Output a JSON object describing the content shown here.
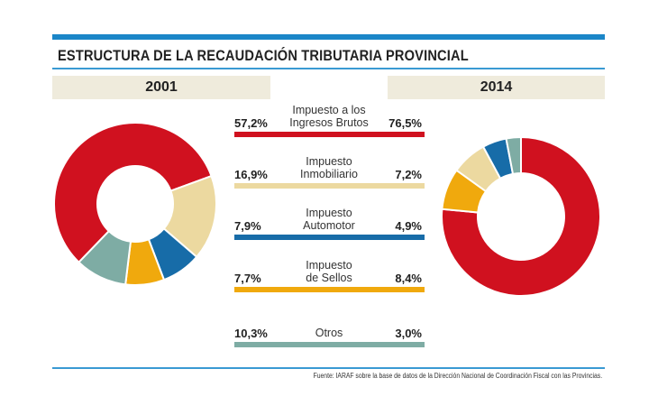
{
  "title": "ESTRUCTURA DE LA RECAUDACIÓN TRIBUTARIA PROVINCIAL",
  "source": "Fuente: IARAF sobre la base de datos de la Dirección Nacional de Coordinación Fiscal con las Provincias.",
  "colors": {
    "accent": "#1b86c8",
    "red": "#d0111f",
    "beige": "#ecd9a0",
    "blue": "#176ca8",
    "yellow": "#f0a90d",
    "teal": "#7eaca4"
  },
  "chart_data": [
    {
      "type": "pie",
      "title": "2001",
      "donut": true,
      "categories": [
        "Impuesto a los Ingresos Brutos",
        "Impuesto Inmobiliario",
        "Impuesto Automotor",
        "Impuesto de Sellos",
        "Otros"
      ],
      "values": [
        57.2,
        16.9,
        7.9,
        7.7,
        10.3
      ],
      "labels": [
        "57,2%",
        "16,9%",
        "7,9%",
        "7,7%",
        "10,3%"
      ],
      "colors": [
        "#d0111f",
        "#ecd9a0",
        "#176ca8",
        "#f0a90d",
        "#7eaca4"
      ]
    },
    {
      "type": "pie",
      "title": "2014",
      "donut": true,
      "categories": [
        "Impuesto a los Ingresos Brutos",
        "Impuesto de Sellos",
        "Impuesto Inmobiliario",
        "Impuesto Automotor",
        "Otros"
      ],
      "values": [
        76.5,
        8.4,
        7.2,
        4.9,
        3.0
      ],
      "labels": [
        "76,5%",
        "8,4%",
        "7,2%",
        "4,9%",
        "3,0%"
      ],
      "colors": [
        "#d0111f",
        "#f0a90d",
        "#ecd9a0",
        "#176ca8",
        "#7eaca4"
      ]
    }
  ],
  "legend": [
    {
      "line1": "Impuesto a los",
      "line2": "Ingresos Brutos",
      "v2001": "57,2%",
      "v2014": "76,5%",
      "color": "#d0111f"
    },
    {
      "line1": "Impuesto",
      "line2": "Inmobiliario",
      "v2001": "16,9%",
      "v2014": "7,2%",
      "color": "#ecd9a0"
    },
    {
      "line1": "Impuesto",
      "line2": "Automotor",
      "v2001": "7,9%",
      "v2014": "4,9%",
      "color": "#176ca8"
    },
    {
      "line1": "Impuesto",
      "line2": "de Sellos",
      "v2001": "7,7%",
      "v2014": "8,4%",
      "color": "#f0a90d"
    },
    {
      "line1": "",
      "line2": "Otros",
      "v2001": "10,3%",
      "v2014": "3,0%",
      "color": "#7eaca4"
    }
  ]
}
